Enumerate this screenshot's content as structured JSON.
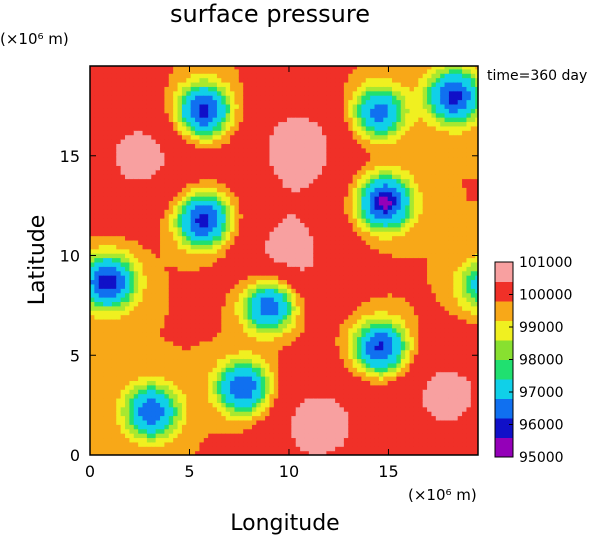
{
  "chart_data": {
    "type": "heatmap",
    "title": "surface pressure",
    "time_label": "time=360 day",
    "xlabel": "Longitude",
    "ylabel": "Latitude",
    "x_unit": "(×10⁶ m)",
    "y_unit": "(×10⁶ m)",
    "xlim": [
      0,
      19.5
    ],
    "ylim": [
      0,
      19.5
    ],
    "x_ticks": [
      0,
      5,
      10,
      15
    ],
    "y_ticks": [
      0,
      5,
      10,
      15
    ],
    "background_level": 100000,
    "colorbar": {
      "levels": [
        95000,
        96000,
        97000,
        98000,
        99000,
        100000,
        101000
      ],
      "colors": [
        "#9400b8",
        "#1010c8",
        "#1070f0",
        "#10d0e8",
        "#20e070",
        "#88e030",
        "#f0f020",
        "#f8a818",
        "#f03028",
        "#f8a0a0"
      ]
    },
    "lows": [
      {
        "x": 5.7,
        "y": 17.3,
        "min": 95500
      },
      {
        "x": 18.3,
        "y": 18.0,
        "min": 95700
      },
      {
        "x": 14.5,
        "y": 17.2,
        "min": 96500
      },
      {
        "x": 14.8,
        "y": 12.7,
        "min": 95200
      },
      {
        "x": 5.7,
        "y": 11.8,
        "min": 95500
      },
      {
        "x": 0.9,
        "y": 8.7,
        "min": 95500
      },
      {
        "x": 19.8,
        "y": 8.5,
        "min": 97500
      },
      {
        "x": 9.0,
        "y": 7.5,
        "min": 96000
      },
      {
        "x": 14.6,
        "y": 5.4,
        "min": 95700
      },
      {
        "x": 7.7,
        "y": 3.4,
        "min": 96000
      },
      {
        "x": 3.1,
        "y": 2.2,
        "min": 96200
      }
    ],
    "highs": [
      {
        "x": 2.5,
        "y": 15.0,
        "max": 101200
      },
      {
        "x": 10.5,
        "y": 15.5,
        "max": 101300
      },
      {
        "x": 10.0,
        "y": 10.0,
        "max": 101200
      },
      {
        "x": 11.5,
        "y": 1.5,
        "max": 101300
      },
      {
        "x": 18.0,
        "y": 3.0,
        "max": 101200
      }
    ]
  }
}
